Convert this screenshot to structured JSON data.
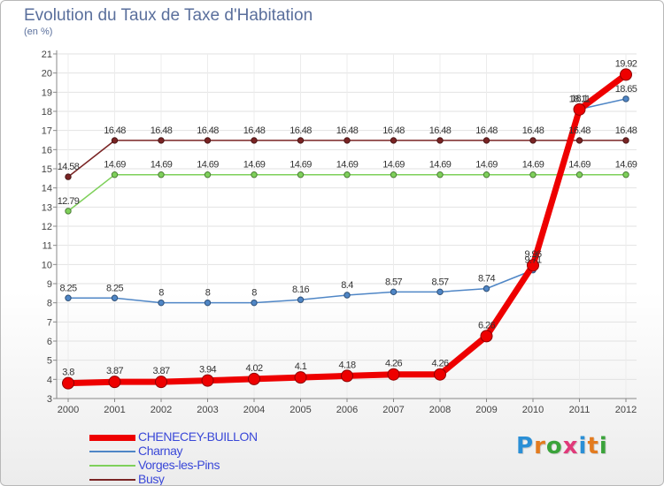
{
  "title": "Evolution du Taux de Taxe d'Habitation",
  "unit_label": "(en %)",
  "logo": {
    "letters": [
      "P",
      "r",
      "o",
      "x",
      "i",
      "t",
      "i"
    ],
    "colors": [
      "#2a8fd6",
      "#e37b1f",
      "#3aa33a",
      "#e03a7a",
      "#2a8fd6",
      "#e37b1f",
      "#3aa33a"
    ]
  },
  "chart_data": {
    "type": "line",
    "x": [
      "2000",
      "2001",
      "2002",
      "2003",
      "2004",
      "2005",
      "2006",
      "2007",
      "2008",
      "2009",
      "2010",
      "2011",
      "2012"
    ],
    "ylim": [
      3,
      21
    ],
    "yticks": [
      "3",
      "4",
      "5",
      "6",
      "7",
      "8",
      "9",
      "10",
      "11",
      "12",
      "13",
      "14",
      "15",
      "16",
      "17",
      "18",
      "19",
      "20",
      "21"
    ],
    "grid": true,
    "legend_position": "bottom-left",
    "series": [
      {
        "name": "Busy",
        "color": "#7a2424",
        "values": [
          14.58,
          16.48,
          16.48,
          16.48,
          16.48,
          16.48,
          16.48,
          16.48,
          16.48,
          16.48,
          16.48,
          16.48,
          16.48
        ],
        "labels": [
          "14.58",
          "16.48",
          "16.48",
          "16.48",
          "16.48",
          "16.48",
          "16.48",
          "16.48",
          "16.48",
          "16.48",
          "16.48",
          "16.48",
          "16.48"
        ]
      },
      {
        "name": "Vorges-les-Pins",
        "color": "#7ed05a",
        "values": [
          12.79,
          14.69,
          14.69,
          14.69,
          14.69,
          14.69,
          14.69,
          14.69,
          14.69,
          14.69,
          14.69,
          14.69,
          14.69
        ],
        "labels": [
          "12.79",
          "14.69",
          "14.69",
          "14.69",
          "14.69",
          "14.69",
          "14.69",
          "14.69",
          "14.69",
          "14.69",
          "14.69",
          "14.69",
          "14.69"
        ]
      },
      {
        "name": "Charnay",
        "color": "#4f86c6",
        "values": [
          8.25,
          8.25,
          8,
          8,
          8,
          8.16,
          8.4,
          8.57,
          8.57,
          8.74,
          9.71,
          18.11,
          18.65
        ],
        "labels": [
          "8.25",
          "8.25",
          "8",
          "8",
          "8",
          "8.16",
          "8.4",
          "8.57",
          "8.57",
          "8.74",
          "9.71",
          "18.11",
          "18.65"
        ]
      },
      {
        "name": "CHENECEY-BUILLON",
        "color": "#ee0000",
        "values": [
          3.8,
          3.87,
          3.87,
          3.94,
          4.02,
          4.1,
          4.18,
          4.26,
          4.26,
          6.26,
          9.96,
          18.1,
          19.92
        ],
        "labels": [
          "3.8",
          "3.87",
          "3.87",
          "3.94",
          "4.02",
          "4.1",
          "4.18",
          "4.26",
          "4.26",
          "6.26",
          "9.96",
          "18.1",
          "19.92"
        ]
      }
    ],
    "legend_order": [
      "CHENECEY-BUILLON",
      "Charnay",
      "Vorges-les-Pins",
      "Busy"
    ]
  }
}
